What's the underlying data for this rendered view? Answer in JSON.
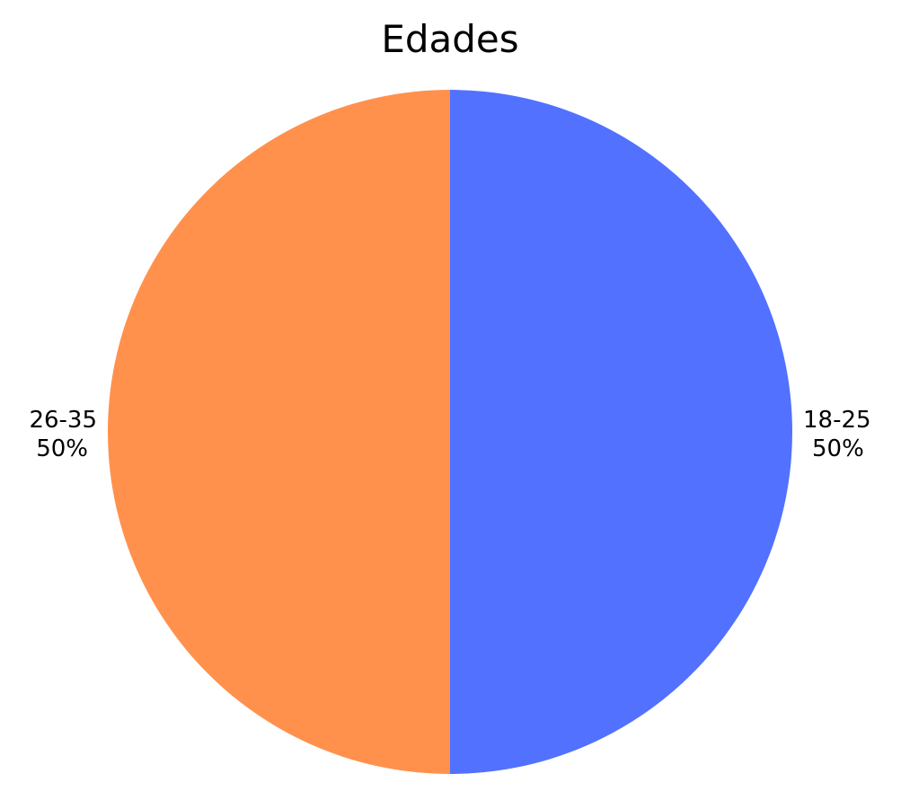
{
  "chart_data": {
    "type": "pie",
    "title": "Edades",
    "categories": [
      "18-25",
      "26-35"
    ],
    "values": [
      50,
      50
    ],
    "labels": [
      "50%",
      "50%"
    ],
    "colors": [
      "#5271ff",
      "#ff914d"
    ],
    "legend": "none"
  }
}
